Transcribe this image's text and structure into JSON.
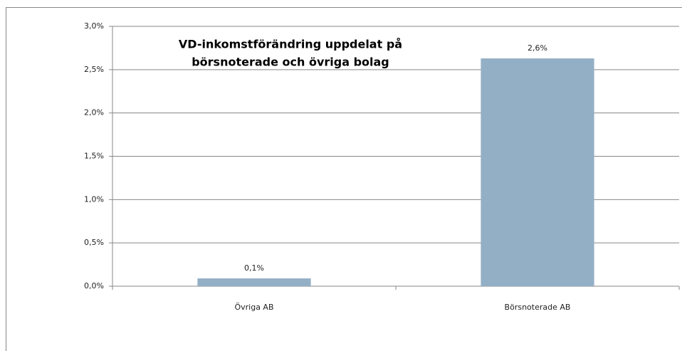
{
  "chart_data": {
    "type": "bar",
    "title": [
      "VD-inkomstförändring uppdelat på",
      "börsnoterade och övriga bolag"
    ],
    "categories": [
      "Övriga AB",
      "Börsnoterade AB"
    ],
    "values": [
      0.09,
      2.63
    ],
    "value_labels": [
      "0,1%",
      "2,6%"
    ],
    "color": "#93afc6",
    "ylim": [
      0,
      3
    ],
    "yticks": [
      {
        "value": 0,
        "label": "0,0%"
      },
      {
        "value": 0.5,
        "label": "0,5%"
      },
      {
        "value": 1,
        "label": "1,0%"
      },
      {
        "value": 1.5,
        "label": "1,5%"
      },
      {
        "value": 2,
        "label": "2,0%"
      },
      {
        "value": 2.5,
        "label": "2,5%"
      },
      {
        "value": 3,
        "label": "3,0%"
      }
    ],
    "grid": true
  }
}
